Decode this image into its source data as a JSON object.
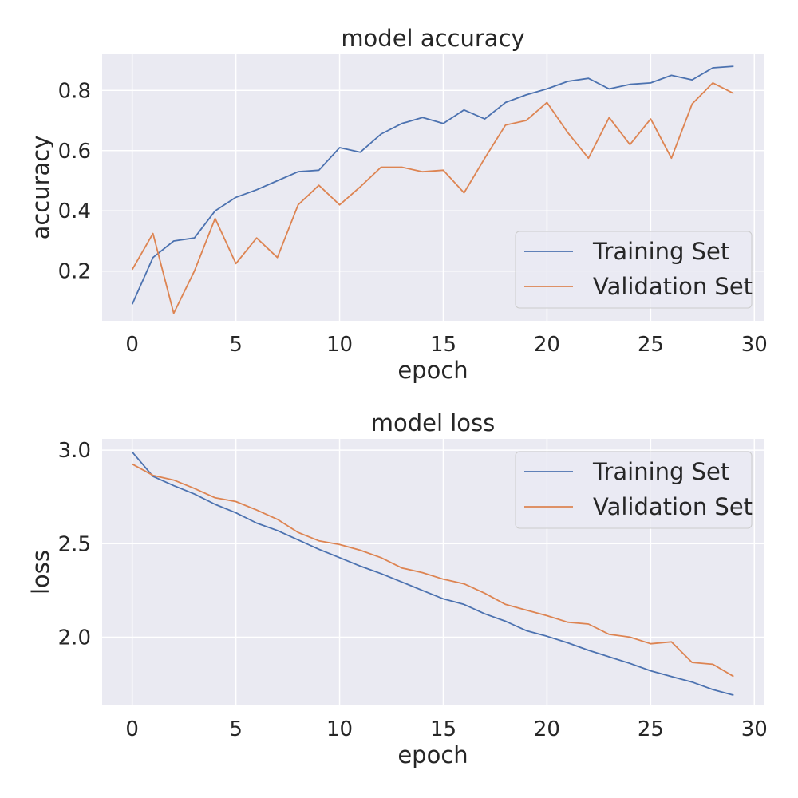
{
  "chart_data": [
    {
      "type": "line",
      "title": "model accuracy",
      "xlabel": "epoch",
      "ylabel": "accuracy",
      "xlim": [
        -1.45,
        30.45
      ],
      "ylim": [
        0.035,
        0.92
      ],
      "xticks": [
        0,
        5,
        10,
        15,
        20,
        25,
        30
      ],
      "yticks": [
        0.2,
        0.4,
        0.6,
        0.8
      ],
      "ytick_labels": [
        "0.2",
        "0.4",
        "0.6",
        "0.8"
      ],
      "grid": true,
      "legend_position": "bottom-right",
      "x": [
        0,
        1,
        2,
        3,
        4,
        5,
        6,
        7,
        8,
        9,
        10,
        11,
        12,
        13,
        14,
        15,
        16,
        17,
        18,
        19,
        20,
        21,
        22,
        23,
        24,
        25,
        26,
        27,
        28,
        29
      ],
      "series": [
        {
          "name": "Training Set",
          "color": "#4c72b0",
          "values": [
            0.09,
            0.245,
            0.3,
            0.31,
            0.4,
            0.445,
            0.47,
            0.5,
            0.53,
            0.535,
            0.61,
            0.595,
            0.655,
            0.69,
            0.71,
            0.69,
            0.735,
            0.705,
            0.76,
            0.785,
            0.805,
            0.83,
            0.84,
            0.805,
            0.82,
            0.825,
            0.85,
            0.835,
            0.875,
            0.88
          ]
        },
        {
          "name": "Validation Set",
          "color": "#dd8452",
          "values": [
            0.205,
            0.325,
            0.06,
            0.2,
            0.375,
            0.225,
            0.31,
            0.245,
            0.42,
            0.485,
            0.42,
            0.48,
            0.545,
            0.545,
            0.53,
            0.535,
            0.46,
            0.575,
            0.685,
            0.7,
            0.76,
            0.66,
            0.575,
            0.71,
            0.62,
            0.705,
            0.575,
            0.755,
            0.825,
            0.79
          ]
        }
      ]
    },
    {
      "type": "line",
      "title": "model loss",
      "xlabel": "epoch",
      "ylabel": "loss",
      "xlim": [
        -1.45,
        30.45
      ],
      "ylim": [
        1.635,
        3.06
      ],
      "xticks": [
        0,
        5,
        10,
        15,
        20,
        25,
        30
      ],
      "yticks": [
        2.0,
        2.5,
        3.0
      ],
      "ytick_labels": [
        "2.0",
        "2.5",
        "3.0"
      ],
      "grid": true,
      "legend_position": "top-right",
      "x": [
        0,
        1,
        2,
        3,
        4,
        5,
        6,
        7,
        8,
        9,
        10,
        11,
        12,
        13,
        14,
        15,
        16,
        17,
        18,
        19,
        20,
        21,
        22,
        23,
        24,
        25,
        26,
        27,
        28,
        29
      ],
      "series": [
        {
          "name": "Training Set",
          "color": "#4c72b0",
          "values": [
            2.99,
            2.86,
            2.81,
            2.765,
            2.71,
            2.665,
            2.61,
            2.57,
            2.52,
            2.47,
            2.425,
            2.38,
            2.34,
            2.295,
            2.25,
            2.205,
            2.175,
            2.125,
            2.085,
            2.035,
            2.005,
            1.97,
            1.93,
            1.895,
            1.86,
            1.82,
            1.79,
            1.76,
            1.72,
            1.69
          ]
        },
        {
          "name": "Validation Set",
          "color": "#dd8452",
          "values": [
            2.925,
            2.865,
            2.84,
            2.795,
            2.745,
            2.725,
            2.68,
            2.63,
            2.56,
            2.515,
            2.495,
            2.465,
            2.425,
            2.37,
            2.345,
            2.31,
            2.285,
            2.235,
            2.175,
            2.145,
            2.115,
            2.08,
            2.07,
            2.015,
            2.0,
            1.965,
            1.975,
            1.865,
            1.855,
            1.79
          ]
        }
      ]
    }
  ]
}
